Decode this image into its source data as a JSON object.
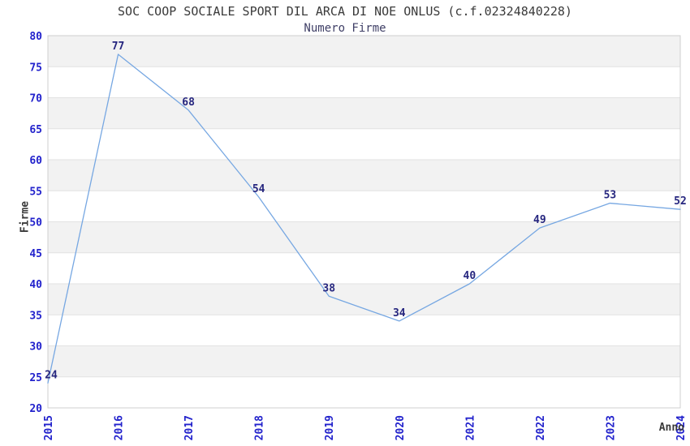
{
  "chart_data": {
    "type": "line",
    "title": "SOC COOP SOCIALE SPORT DIL ARCA DI NOE ONLUS (c.f.02324840228)",
    "subtitle": "Numero Firme",
    "xlabel": "Anno",
    "ylabel": "Firme",
    "categories": [
      "2015",
      "2016",
      "2017",
      "2018",
      "2019",
      "2020",
      "2021",
      "2022",
      "2023",
      "2024"
    ],
    "values": [
      24,
      77,
      68,
      54,
      38,
      34,
      40,
      49,
      53,
      52
    ],
    "data_labels_shown": true,
    "ylim": [
      20,
      80
    ],
    "yticks": [
      20,
      25,
      30,
      35,
      40,
      45,
      50,
      55,
      60,
      65,
      70,
      75,
      80
    ],
    "ytick_step": 5,
    "grid": "alternating-horizontal-bands",
    "legend": null,
    "colors": {
      "line": "#76A7E2",
      "tick_label": "#2222CC",
      "data_label": "#26267F",
      "title": "#3A3A3A",
      "subtitle": "#3F3F66",
      "axis_label": "#3A3A3A",
      "band": "#F2F2F2",
      "gridline": "#E2E2E2",
      "plot_border": "#CFCFCF",
      "background": "#FFFFFF"
    }
  }
}
